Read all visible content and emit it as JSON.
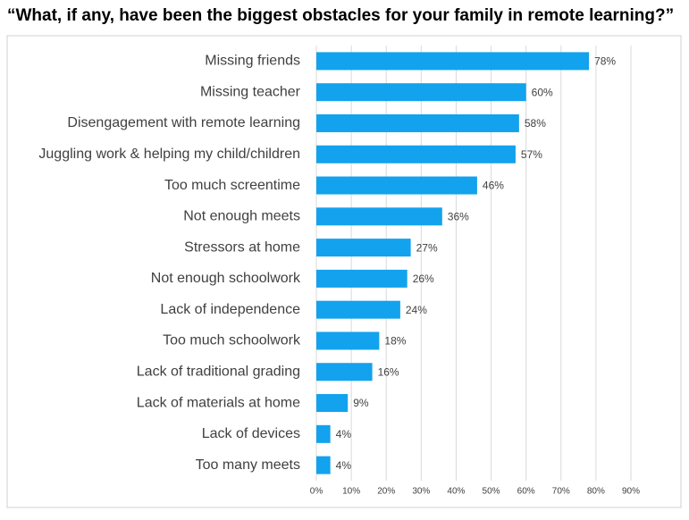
{
  "chart_data": {
    "type": "bar",
    "orientation": "horizontal",
    "title": "“What, if any, have been the biggest obstacles for your family in remote learning?”",
    "categories": [
      "Missing friends",
      "Missing teacher",
      "Disengagement with remote learning",
      "Juggling work & helping my child/children",
      "Too much screentime",
      "Not enough meets",
      "Stressors at home",
      "Not enough schoolwork",
      "Lack of independence",
      "Too much schoolwork",
      "Lack of traditional grading",
      "Lack of materials at home",
      "Lack of devices",
      "Too many meets"
    ],
    "values": [
      78,
      60,
      58,
      57,
      46,
      36,
      27,
      26,
      24,
      18,
      16,
      9,
      4,
      4
    ],
    "value_labels": [
      "78%",
      "60%",
      "58%",
      "57%",
      "46%",
      "36%",
      "27%",
      "26%",
      "24%",
      "18%",
      "16%",
      "9%",
      "4%",
      "4%"
    ],
    "color": "#12a2ee",
    "xlim": [
      0,
      90
    ],
    "xticks": [
      {
        "value": 0,
        "label": "0%"
      },
      {
        "value": 10,
        "label": "10%"
      },
      {
        "value": 20,
        "label": "20%"
      },
      {
        "value": 30,
        "label": "30%"
      },
      {
        "value": 40,
        "label": "40%"
      },
      {
        "value": 50,
        "label": "50%"
      },
      {
        "value": 60,
        "label": "60%"
      },
      {
        "value": 70,
        "label": "70%"
      },
      {
        "value": 80,
        "label": "80%"
      },
      {
        "value": 90,
        "label": "90%"
      }
    ],
    "grid": true
  }
}
